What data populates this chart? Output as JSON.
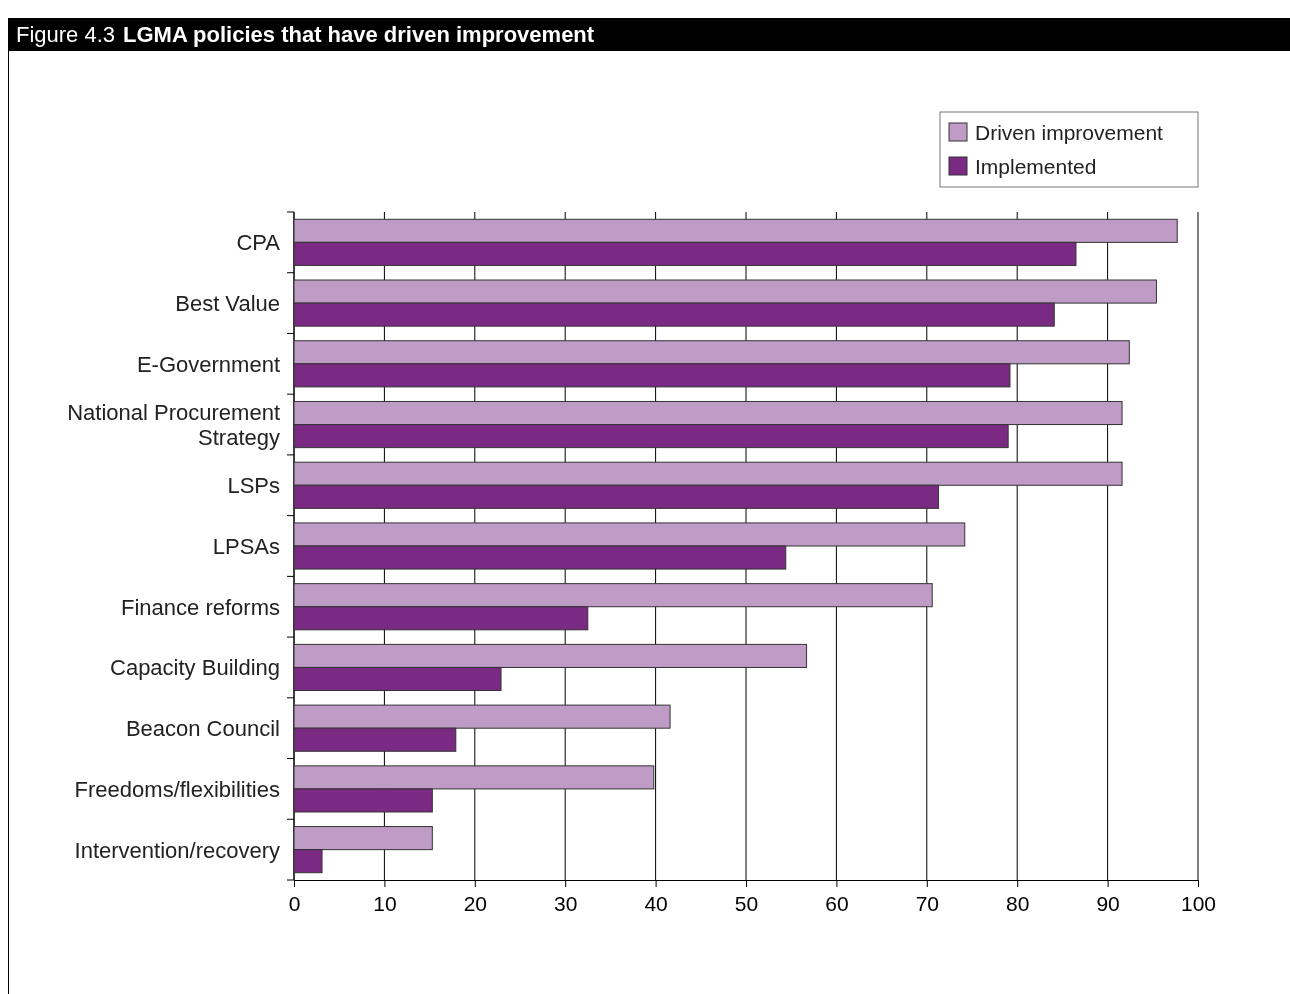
{
  "chart_data": {
    "type": "bar",
    "orientation": "horizontal",
    "title": "Figure 4.3",
    "subtitle": "LGMA policies that have driven improvement",
    "categories": [
      "CPA",
      "Best Value",
      "E-Government",
      "National Procurement Strategy",
      "LSPs",
      "LPSAs",
      "Finance reforms",
      "Capacity Building",
      "Beacon Council",
      "Freedoms/flexibilities",
      "Intervention/recovery"
    ],
    "series": [
      {
        "name": "Driven improvement",
        "color": "#bf9cc6",
        "values": [
          97.7,
          95.4,
          92.4,
          91.6,
          91.6,
          74.2,
          70.6,
          56.7,
          41.6,
          39.8,
          15.3
        ]
      },
      {
        "name": "Implemented",
        "color": "#7b2a83",
        "values": [
          86.5,
          84.1,
          79.2,
          79.0,
          71.3,
          54.4,
          32.5,
          22.9,
          17.9,
          15.3,
          3.1
        ]
      }
    ],
    "xlim": [
      0,
      100
    ],
    "xticks": [
      0,
      10,
      20,
      30,
      40,
      50,
      60,
      70,
      80,
      90,
      100
    ],
    "grid": "x",
    "legend": "top right"
  }
}
